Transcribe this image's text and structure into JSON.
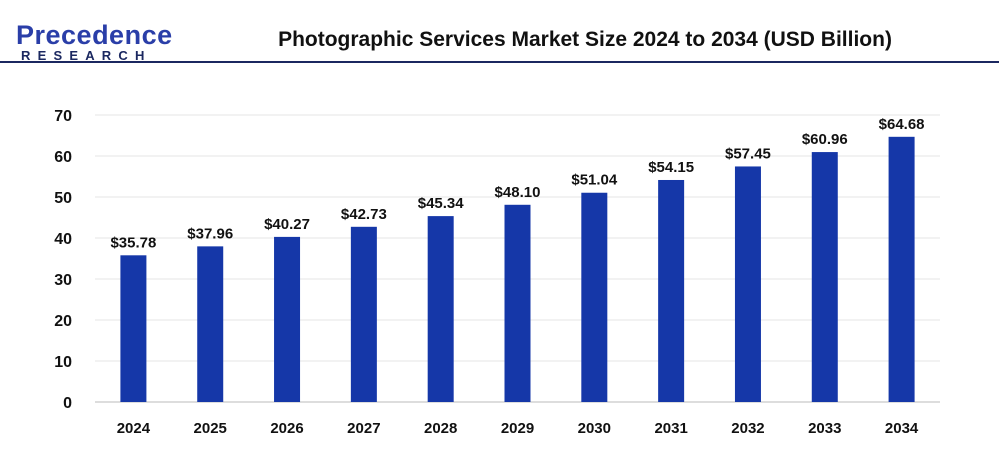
{
  "logo": {
    "line1": "Precedence",
    "line2": "RESEARCH"
  },
  "chart_data": {
    "type": "bar",
    "title": "Photographic Services Market Size 2024 to 2034 (USD Billion)",
    "categories": [
      "2024",
      "2025",
      "2026",
      "2027",
      "2028",
      "2029",
      "2030",
      "2031",
      "2032",
      "2033",
      "2034"
    ],
    "values": [
      35.78,
      37.96,
      40.27,
      42.73,
      45.34,
      48.1,
      51.04,
      54.15,
      57.45,
      60.96,
      64.68
    ],
    "data_labels": [
      "$35.78",
      "$37.96",
      "$40.27",
      "$42.73",
      "$45.34",
      "$48.10",
      "$51.04",
      "$54.15",
      "$57.45",
      "$60.96",
      "$64.68"
    ],
    "xlabel": "",
    "ylabel": "",
    "ylim": [
      0,
      70
    ],
    "yticks": [
      "0",
      "10",
      "20",
      "30",
      "40",
      "50",
      "60",
      "70"
    ],
    "grid": true,
    "bar_color": "#1537a8"
  }
}
